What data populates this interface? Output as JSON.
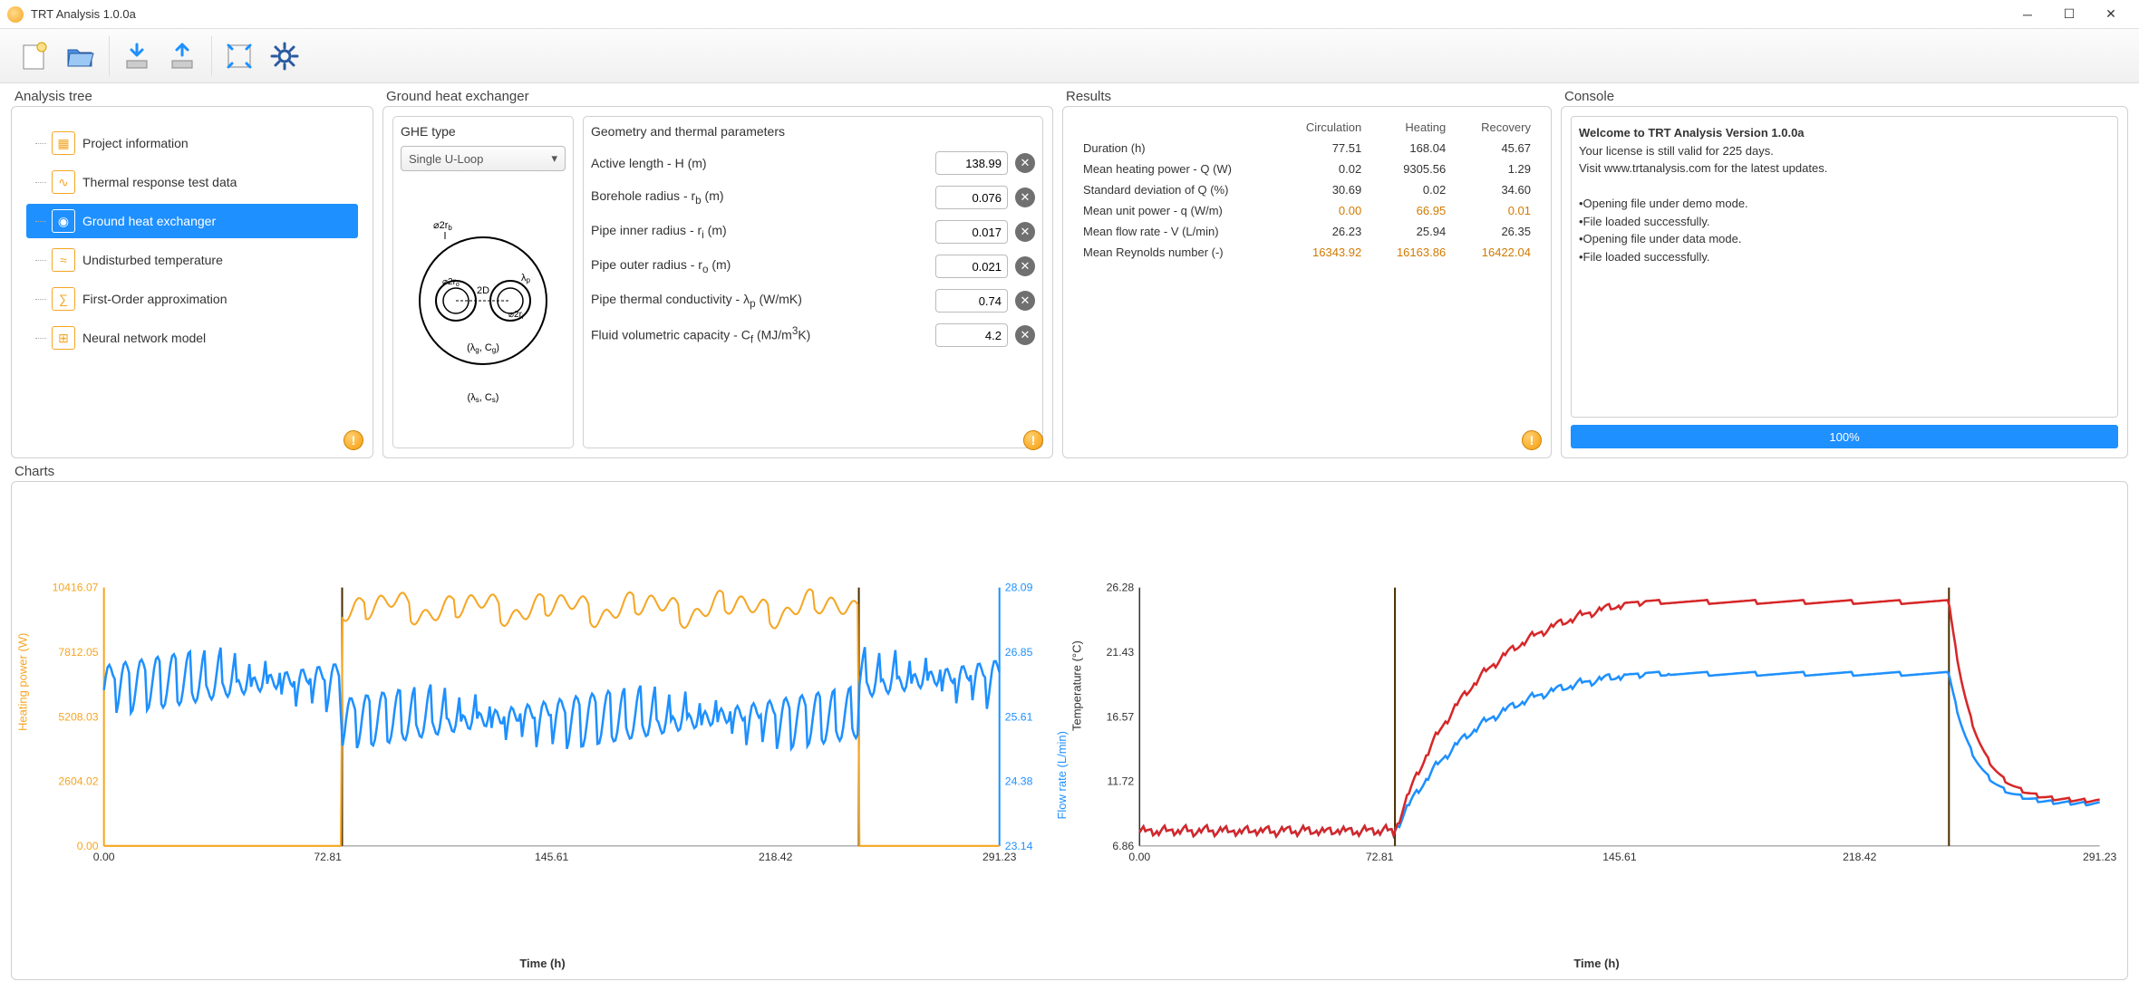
{
  "window": {
    "title": "TRT Analysis 1.0.0a"
  },
  "toolbar": {
    "buttons": [
      {
        "name": "new-file-icon",
        "tip": "New"
      },
      {
        "name": "open-file-icon",
        "tip": "Open"
      },
      {
        "name": "import-icon",
        "tip": "Import"
      },
      {
        "name": "export-icon",
        "tip": "Export"
      },
      {
        "name": "fullscreen-icon",
        "tip": "Fullscreen"
      },
      {
        "name": "settings-icon",
        "tip": "Settings"
      }
    ]
  },
  "tree": {
    "title": "Analysis tree",
    "items": [
      {
        "label": "Project information",
        "selected": false
      },
      {
        "label": "Thermal response test data",
        "selected": false
      },
      {
        "label": "Ground heat exchanger",
        "selected": true
      },
      {
        "label": "Undisturbed temperature",
        "selected": false
      },
      {
        "label": "First-Order approximation",
        "selected": false
      },
      {
        "label": "Neural network model",
        "selected": false
      }
    ]
  },
  "ghe": {
    "title": "Ground heat exchanger",
    "type_title": "GHE type",
    "type_value": "Single U-Loop",
    "params_title": "Geometry and thermal parameters",
    "params": [
      {
        "label": "Active length - H (m)",
        "value": "138.99"
      },
      {
        "label": "Borehole radius - r_b (m)",
        "value": "0.076"
      },
      {
        "label": "Pipe inner radius - r_i (m)",
        "value": "0.017"
      },
      {
        "label": "Pipe outer radius - r_o (m)",
        "value": "0.021"
      },
      {
        "label": "Pipe thermal conductivity - λ_p (W/mK)",
        "value": "0.74"
      },
      {
        "label": "Fluid volumetric capacity - C_f (MJ/m³K)",
        "value": "4.2"
      }
    ],
    "diagram": {
      "labels": {
        "rb": "⌀2r_b",
        "ro": "⌀2r_o",
        "ri": "⌀2r_i",
        "D": "2D",
        "lp": "λ_p",
        "grout": "(λ_g, C_g)",
        "soil": "(λ_s, C_s)"
      }
    }
  },
  "results": {
    "title": "Results",
    "columns": [
      "Circulation",
      "Heating",
      "Recovery"
    ],
    "rows": [
      {
        "label": "Duration (h)",
        "vals": [
          "77.51",
          "168.04",
          "45.67"
        ],
        "hl": false
      },
      {
        "label": "Mean heating power - Q (W)",
        "vals": [
          "0.02",
          "9305.56",
          "1.29"
        ],
        "hl": false
      },
      {
        "label": "Standard deviation of Q (%)",
        "vals": [
          "30.69",
          "0.02",
          "34.60"
        ],
        "hl": false
      },
      {
        "label": "Mean unit power - q (W/m)",
        "vals": [
          "0.00",
          "66.95",
          "0.01"
        ],
        "hl": true
      },
      {
        "label": "Mean flow rate - V (L/min)",
        "vals": [
          "26.23",
          "25.94",
          "26.35"
        ],
        "hl": false
      },
      {
        "label": "Mean Reynolds number (-)",
        "vals": [
          "16343.92",
          "16163.86",
          "16422.04"
        ],
        "hl": true
      }
    ]
  },
  "console": {
    "title": "Console",
    "heading": "Welcome to TRT Analysis Version 1.0.0a",
    "license": "Your license is still valid for 225 days.",
    "update": "Visit www.trtanalysis.com for the latest updates.",
    "lines": [
      "•Opening file under demo mode.",
      "•File loaded successfully.",
      "•Opening file under data mode.",
      "•File loaded successfully."
    ],
    "progress": "100%"
  },
  "charts": {
    "title": "Charts",
    "chart1": {
      "xlabel": "Time (h)",
      "ylabel_left": "Heating power (W)",
      "ylabel_right": "Flow rate (L/min)",
      "x_ticks": [
        "0.00",
        "72.81",
        "145.61",
        "218.42",
        "291.23"
      ],
      "yl_ticks": [
        "0.00",
        "2604.02",
        "5208.03",
        "7812.05",
        "10416.07"
      ],
      "yr_ticks": [
        "23.14",
        "24.38",
        "25.61",
        "26.85",
        "28.09"
      ],
      "color_left": "#f5a623",
      "color_right": "#1e90ff",
      "divider_color": "#4a2e00",
      "cut1_x": 0.266,
      "cut2_x": 0.843,
      "series_power": {
        "name": "Heating power",
        "color": "#f5a623"
      },
      "series_flow": {
        "name": "Flow rate",
        "color": "#1e90ff"
      }
    },
    "chart2": {
      "xlabel": "Time (h)",
      "ylabel": "Temperature (°C)",
      "x_ticks": [
        "0.00",
        "72.81",
        "145.61",
        "218.42",
        "291.23"
      ],
      "y_ticks": [
        "6.86",
        "11.72",
        "16.57",
        "21.43",
        "26.28"
      ],
      "color_axis": "#333333",
      "divider_color": "#4a2e00",
      "cut1_x": 0.266,
      "cut2_x": 0.843,
      "series_t_in": {
        "name": "Inlet temperature",
        "color": "#d62728"
      },
      "series_t_out": {
        "name": "Outlet temperature",
        "color": "#1e90ff"
      }
    }
  }
}
